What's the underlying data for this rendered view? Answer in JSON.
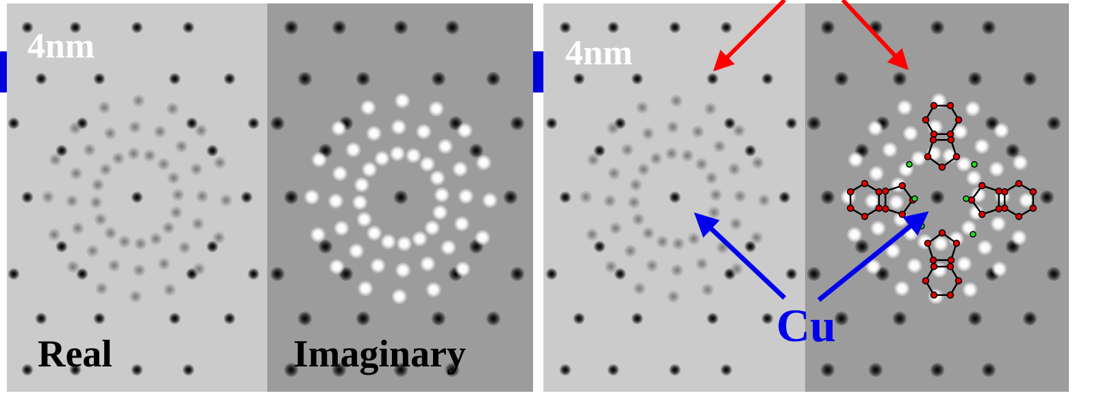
{
  "panels": [
    {
      "scale_label": "4nm",
      "real_label": "Real",
      "imaginary_label": "Imaginary"
    },
    {
      "scale_label": "4nm"
    }
  ],
  "annotation": "Cu"
}
